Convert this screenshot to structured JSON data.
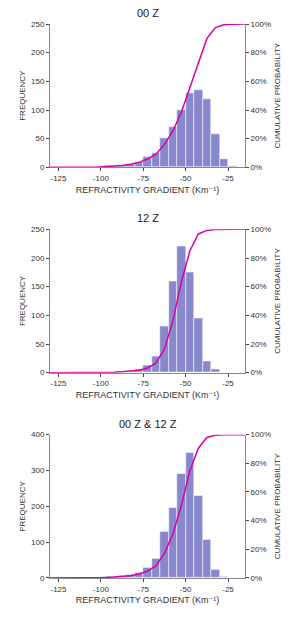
{
  "chart_data": [
    {
      "type": "histogram",
      "title": "00 Z",
      "xlabel": "REFRACTIVITY GRADIENT (Km⁻¹)",
      "ylabel": "FREQUENCY",
      "y2label": "CUMULATIVE PROBABILITY",
      "xlim": [
        -130,
        -15
      ],
      "xticks": [
        -125,
        -100,
        -75,
        -50,
        -25
      ],
      "ylim": [
        0,
        250
      ],
      "yticks": [
        0,
        50,
        100,
        150,
        200,
        250
      ],
      "y2lim": [
        0,
        100
      ],
      "y2ticks": [
        {
          "value": 0,
          "label": "0%"
        },
        {
          "value": 20,
          "label": "20%"
        },
        {
          "value": 40,
          "label": "40%"
        },
        {
          "value": 60,
          "label": "60%"
        },
        {
          "value": 80,
          "label": "80%"
        },
        {
          "value": 100,
          "label": "100%"
        }
      ],
      "grid": false,
      "bins": [
        -125,
        -120,
        -115,
        -110,
        -105,
        -100,
        -95,
        -90,
        -85,
        -80,
        -75,
        -70,
        -65,
        -60,
        -55,
        -50,
        -45,
        -40,
        -35,
        -30,
        -25,
        -20
      ],
      "series": [
        {
          "type": "bar",
          "color": "#8888cc",
          "values": [
            0,
            0,
            0,
            0,
            1,
            3,
            2,
            4,
            6,
            10,
            18,
            25,
            52,
            70,
            100,
            130,
            135,
            120,
            58,
            15,
            3
          ]
        },
        {
          "type": "line",
          "axis": "y2",
          "color": "#dd00aa",
          "x": [
            -130,
            -122.5,
            -117.5,
            -112.5,
            -107.5,
            -102.5,
            -97.5,
            -92.5,
            -87.5,
            -82.5,
            -77.5,
            -72.5,
            -67.5,
            -62.5,
            -57.5,
            -52.5,
            -47.5,
            -42.5,
            -37.5,
            -32.5,
            -27.5,
            -22.5,
            -15
          ],
          "values": [
            0,
            0,
            0,
            0,
            0,
            0.1328,
            0.5312,
            0.7968,
            1.328,
            2.1248,
            3.4529,
            5.8433,
            9.1633,
            16.0691,
            25.3652,
            38.6454,
            55.9097,
            73.838,
            89.7742,
            97.4768,
            99.4688,
            99.8672,
            100
          ]
        }
      ]
    },
    {
      "type": "histogram",
      "title": "12 Z",
      "xlabel": "REFRACTIVITY GRADIENT (Km⁻¹)",
      "ylabel": "FREQUENCY",
      "y2label": "CUMULATIVE PROBABILITY",
      "xlim": [
        -130,
        -15
      ],
      "xticks": [
        -125,
        -100,
        -75,
        -50,
        -25
      ],
      "ylim": [
        0,
        250
      ],
      "yticks": [
        0,
        50,
        100,
        150,
        200,
        250
      ],
      "y2lim": [
        0,
        100
      ],
      "y2ticks": [
        {
          "value": 0,
          "label": "0%"
        },
        {
          "value": 20,
          "label": "20%"
        },
        {
          "value": 40,
          "label": "40%"
        },
        {
          "value": 60,
          "label": "60%"
        },
        {
          "value": 80,
          "label": "80%"
        },
        {
          "value": 100,
          "label": "100%"
        }
      ],
      "grid": false,
      "bins": [
        -125,
        -120,
        -115,
        -110,
        -105,
        -100,
        -95,
        -90,
        -85,
        -80,
        -75,
        -70,
        -65,
        -60,
        -55,
        -50,
        -45,
        -40,
        -35,
        -30,
        -25,
        -20
      ],
      "series": [
        {
          "type": "bar",
          "color": "#8888cc",
          "values": [
            0,
            0,
            0,
            0,
            1,
            1,
            1,
            2,
            3,
            6,
            12,
            28,
            80,
            160,
            220,
            175,
            95,
            20,
            5,
            1,
            0
          ]
        },
        {
          "type": "line",
          "axis": "y2",
          "color": "#dd00aa",
          "x": [
            -130,
            -122.5,
            -117.5,
            -112.5,
            -107.5,
            -102.5,
            -97.5,
            -92.5,
            -87.5,
            -82.5,
            -77.5,
            -72.5,
            -67.5,
            -62.5,
            -57.5,
            -52.5,
            -47.5,
            -42.5,
            -37.5,
            -32.5,
            -27.5,
            -22.5,
            -15
          ],
          "values": [
            0,
            0,
            0,
            0,
            0,
            0.1235,
            0.2469,
            0.3704,
            0.6173,
            0.9877,
            1.7284,
            3.2099,
            6.6667,
            16.5432,
            36.2963,
            63.4568,
            85.0617,
            96.7901,
            99.2593,
            99.8765,
            100,
            100,
            100
          ]
        }
      ]
    },
    {
      "type": "histogram",
      "title": "00 Z & 12 Z",
      "xlabel": "REFRACTIVITY GRADIENT (Km⁻¹)",
      "ylabel": "FREQUENCY",
      "y2label": "CUMULATIVE PROBABILITY",
      "xlim": [
        -130,
        -15
      ],
      "xticks": [
        -125,
        -100,
        -75,
        -50,
        -25
      ],
      "ylim": [
        0,
        400
      ],
      "yticks": [
        0,
        100,
        200,
        300,
        400
      ],
      "y2lim": [
        0,
        100
      ],
      "y2ticks": [
        {
          "value": 0,
          "label": "0%"
        },
        {
          "value": 20,
          "label": "20%"
        },
        {
          "value": 40,
          "label": "40%"
        },
        {
          "value": 60,
          "label": "60%"
        },
        {
          "value": 80,
          "label": "80%"
        },
        {
          "value": 100,
          "label": "100%"
        }
      ],
      "grid": false,
      "bins": [
        -125,
        -120,
        -115,
        -110,
        -105,
        -100,
        -95,
        -90,
        -85,
        -80,
        -75,
        -70,
        -65,
        -60,
        -55,
        -50,
        -45,
        -40,
        -35,
        -30,
        -25,
        -20
      ],
      "series": [
        {
          "type": "bar",
          "color": "#8888cc",
          "values": [
            0,
            0,
            0,
            0,
            2,
            4,
            3,
            6,
            9,
            16,
            30,
            53,
            130,
            195,
            290,
            350,
            230,
            108,
            23,
            5,
            1
          ]
        },
        {
          "type": "line",
          "axis": "y2",
          "color": "#dd00aa",
          "x": [
            -130,
            -122.5,
            -117.5,
            -112.5,
            -107.5,
            -102.5,
            -97.5,
            -92.5,
            -87.5,
            -82.5,
            -77.5,
            -72.5,
            -67.5,
            -62.5,
            -57.5,
            -52.5,
            -47.5,
            -42.5,
            -37.5,
            -32.5,
            -27.5,
            -22.5,
            -15
          ],
          "values": [
            0,
            0,
            0,
            0,
            0,
            0.1375,
            0.4124,
            0.6186,
            1.0309,
            1.6495,
            2.7491,
            4.811,
            8.4536,
            17.3883,
            30.7904,
            50.7216,
            74.7766,
            90.5842,
            98.0069,
            99.5876,
            99.9313,
            100,
            100
          ]
        }
      ]
    }
  ]
}
